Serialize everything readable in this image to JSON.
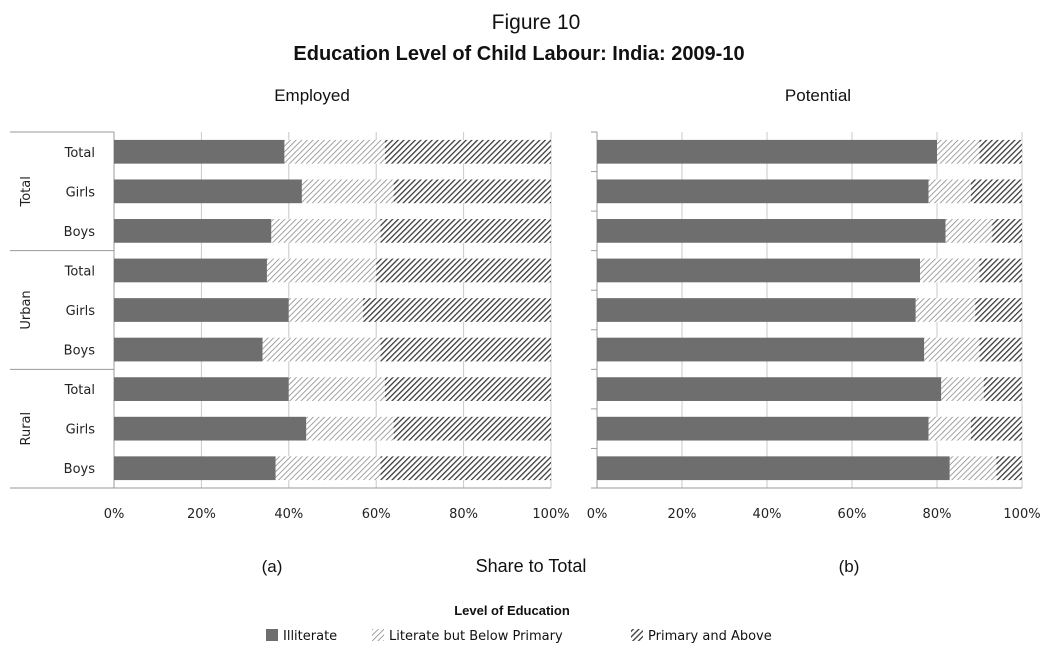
{
  "figure": {
    "label": "Figure 10",
    "title": "Education Level of Child Labour: India: 2009-10",
    "xlabel": "Share to Total"
  },
  "legend": {
    "title": "Level of Education",
    "items": [
      {
        "name": "Illiterate",
        "pattern": "solid",
        "color": "#6e6e6e"
      },
      {
        "name": "Literate but Below Primary",
        "pattern": "light-hatch",
        "color": "#8a8a8a"
      },
      {
        "name": "Primary and Above",
        "pattern": "dark-hatch",
        "color": "#3a3a3a"
      }
    ]
  },
  "chart_data": [
    {
      "type": "bar",
      "orientation": "horizontal",
      "stacked": "percent",
      "title": "Employed",
      "panel_label": "(a)",
      "groups": [
        "Total",
        "Urban",
        "Rural"
      ],
      "categories": [
        "Total",
        "Girls",
        "Boys"
      ],
      "xlim": [
        0,
        100
      ],
      "xticks": [
        "0%",
        "20%",
        "40%",
        "60%",
        "80%",
        "100%"
      ],
      "grid": true,
      "rows": [
        {
          "group": "Total",
          "category": "Total",
          "values": [
            39,
            23,
            38
          ]
        },
        {
          "group": "Total",
          "category": "Girls",
          "values": [
            43,
            21,
            36
          ]
        },
        {
          "group": "Total",
          "category": "Boys",
          "values": [
            36,
            25,
            39
          ]
        },
        {
          "group": "Urban",
          "category": "Total",
          "values": [
            35,
            25,
            40
          ]
        },
        {
          "group": "Urban",
          "category": "Girls",
          "values": [
            40,
            17,
            43
          ]
        },
        {
          "group": "Urban",
          "category": "Boys",
          "values": [
            34,
            27,
            39
          ]
        },
        {
          "group": "Rural",
          "category": "Total",
          "values": [
            40,
            22,
            38
          ]
        },
        {
          "group": "Rural",
          "category": "Girls",
          "values": [
            44,
            20,
            36
          ]
        },
        {
          "group": "Rural",
          "category": "Boys",
          "values": [
            37,
            24,
            39
          ]
        }
      ]
    },
    {
      "type": "bar",
      "orientation": "horizontal",
      "stacked": "percent",
      "title": "Potential",
      "panel_label": "(b)",
      "groups": [
        "Total",
        "Urban",
        "Rural"
      ],
      "categories": [
        "Total",
        "Girls",
        "Boys"
      ],
      "xlim": [
        0,
        100
      ],
      "xticks": [
        "0%",
        "20%",
        "40%",
        "60%",
        "80%",
        "100%"
      ],
      "grid": true,
      "rows": [
        {
          "group": "Total",
          "category": "Total",
          "values": [
            80,
            10,
            10
          ]
        },
        {
          "group": "Total",
          "category": "Girls",
          "values": [
            78,
            10,
            12
          ]
        },
        {
          "group": "Total",
          "category": "Boys",
          "values": [
            82,
            11,
            7
          ]
        },
        {
          "group": "Urban",
          "category": "Total",
          "values": [
            76,
            14,
            10
          ]
        },
        {
          "group": "Urban",
          "category": "Girls",
          "values": [
            75,
            14,
            11
          ]
        },
        {
          "group": "Urban",
          "category": "Boys",
          "values": [
            77,
            13,
            10
          ]
        },
        {
          "group": "Rural",
          "category": "Total",
          "values": [
            81,
            10,
            9
          ]
        },
        {
          "group": "Rural",
          "category": "Girls",
          "values": [
            78,
            10,
            12
          ]
        },
        {
          "group": "Rural",
          "category": "Boys",
          "values": [
            83,
            11,
            6
          ]
        }
      ]
    }
  ]
}
